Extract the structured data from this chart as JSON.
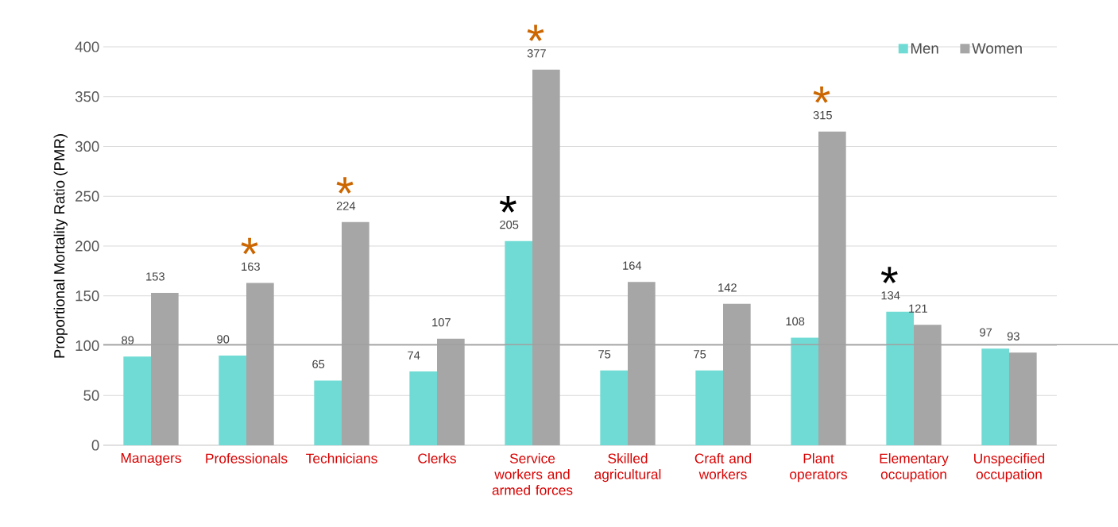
{
  "chart_data": {
    "type": "bar",
    "ylabel": "Proportional Mortality Ratio (PMR)",
    "categories": [
      "Managers",
      "Professionals",
      "Technicians",
      "Clerks",
      "Service workers and armed forces",
      "Skilled agricultural",
      "Craft and workers",
      "Plant operators",
      "Elementary occupation",
      "Unspecified occupation"
    ],
    "series": [
      {
        "name": "Men",
        "color": "#70dbd4",
        "values": [
          89,
          90,
          65,
          74,
          205,
          75,
          75,
          108,
          134,
          97
        ]
      },
      {
        "name": "Women",
        "color": "#a6a6a6",
        "values": [
          153,
          163,
          224,
          107,
          377,
          164,
          142,
          315,
          121,
          93
        ]
      }
    ],
    "ylim": [
      0,
      400
    ],
    "yticks": [
      0,
      50,
      100,
      150,
      200,
      250,
      300,
      350,
      400
    ],
    "grid": "y",
    "legend": "top right",
    "data_labels": true,
    "ref_lines": [
      {
        "axis": "y",
        "value": 101,
        "color": "#a0a0a0"
      }
    ],
    "annotations": [
      {
        "text": "*",
        "x": "Professionals",
        "y": 163
      },
      {
        "text": "*",
        "x": "Technicians",
        "y": 224
      },
      {
        "text": "*",
        "x": "Service workers and armed forces",
        "y": 377
      },
      {
        "text": "*",
        "x": "Plant operators",
        "y": 315
      },
      {
        "text": "*",
        "x": "Service workers and armed forces",
        "y": 205
      },
      {
        "text": "*",
        "x": "Elementary occupation",
        "y": 134
      }
    ]
  }
}
